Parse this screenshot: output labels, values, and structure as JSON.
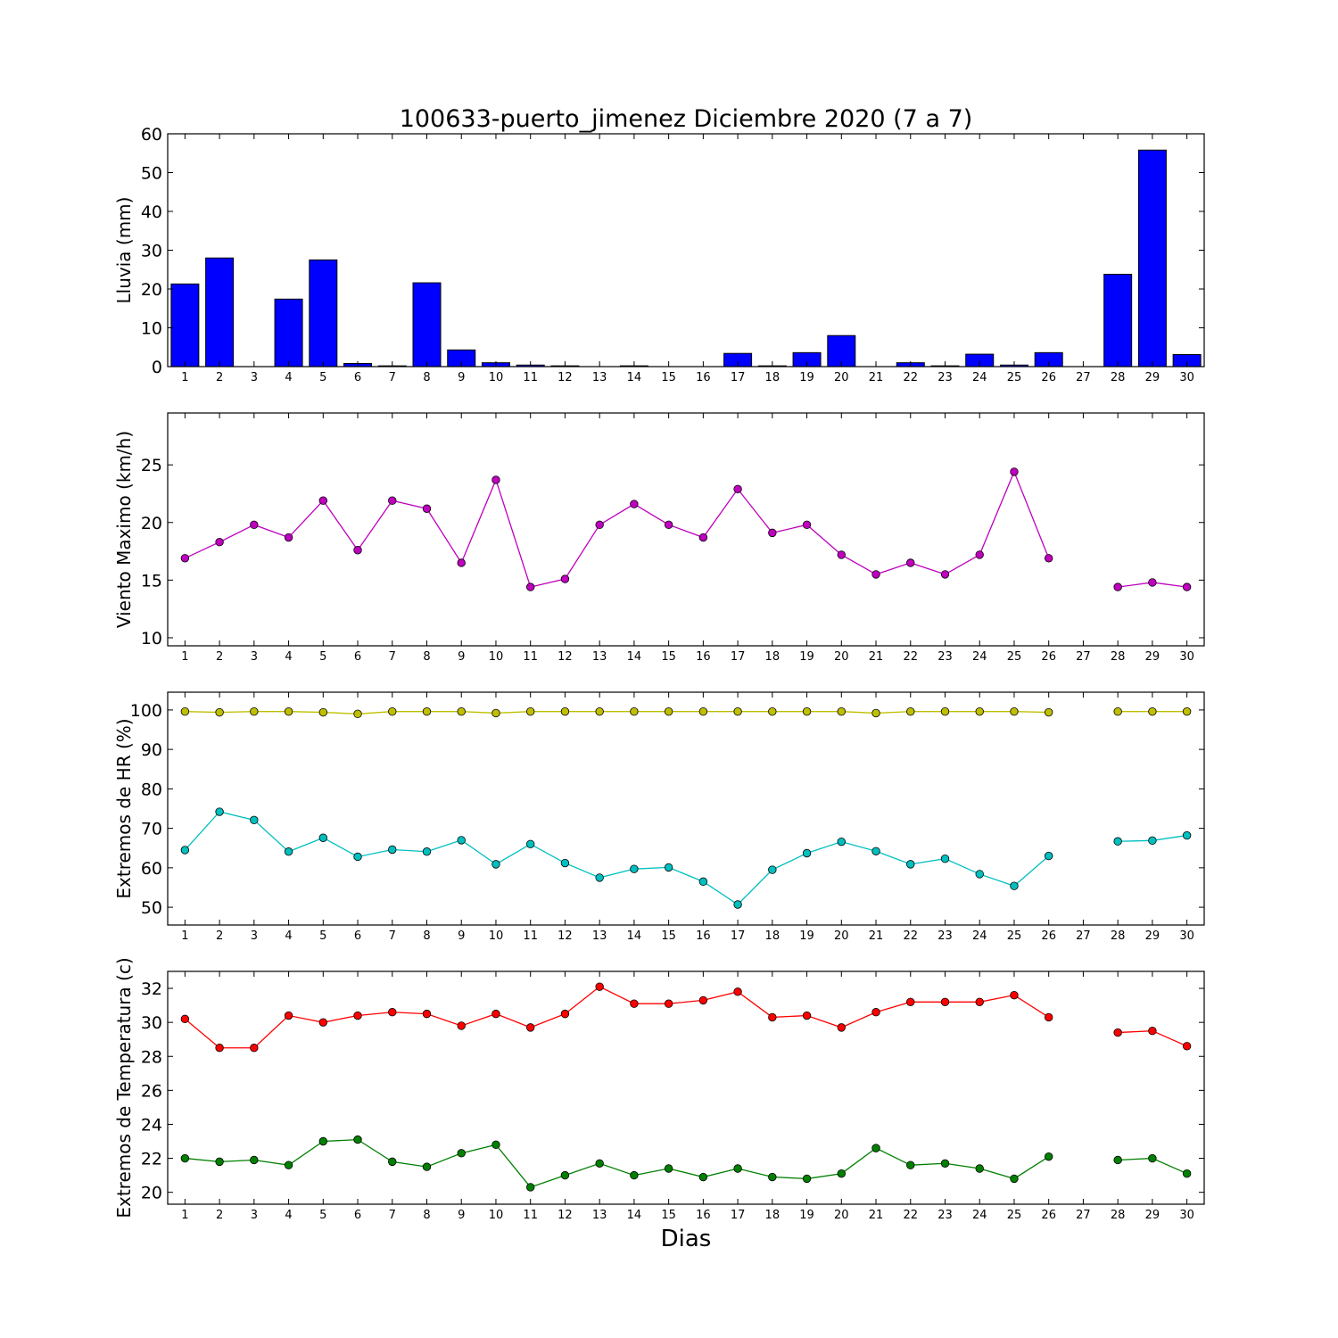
{
  "chart_data": {
    "title": "100633-puerto_jimenez Diciembre 2020  (7 a 7)",
    "xlabel": "Dias",
    "days": [
      1,
      2,
      3,
      4,
      5,
      6,
      7,
      8,
      9,
      10,
      11,
      12,
      13,
      14,
      15,
      16,
      17,
      18,
      19,
      20,
      21,
      22,
      23,
      24,
      25,
      26,
      27,
      28,
      29,
      30
    ],
    "panels": [
      {
        "type": "bar",
        "ylabel": "Lluvia (mm)",
        "ylim": [
          0,
          60
        ],
        "yticks": [
          0,
          10,
          20,
          30,
          40,
          50,
          60
        ],
        "series": [
          {
            "color": "#0000ff",
            "values": [
              21.3,
              28.0,
              0.0,
              17.4,
              27.5,
              0.8,
              0.2,
              21.6,
              4.3,
              1.0,
              0.4,
              0.2,
              0.0,
              0.2,
              0.0,
              0.0,
              3.4,
              0.2,
              3.6,
              8.0,
              0.0,
              1.0,
              0.2,
              3.2,
              0.4,
              3.6,
              null,
              23.8,
              55.8,
              3.1
            ]
          }
        ]
      },
      {
        "type": "line",
        "ylabel": "Viento Maximo (km/h)",
        "ylim": [
          9.3,
          29.5
        ],
        "yticks": [
          10,
          15,
          20,
          25
        ],
        "series": [
          {
            "color": "#bf00bf",
            "values": [
              16.9,
              18.3,
              19.8,
              18.7,
              21.9,
              17.6,
              21.9,
              21.2,
              16.5,
              23.7,
              14.4,
              15.1,
              19.8,
              21.6,
              19.8,
              18.7,
              22.9,
              19.1,
              19.8,
              17.2,
              15.5,
              16.5,
              15.5,
              17.2,
              24.4,
              16.9,
              null,
              14.4,
              14.8,
              14.4
            ]
          }
        ]
      },
      {
        "type": "line",
        "ylabel": "Extremos de HR (%)",
        "ylim": [
          45.5,
          104.5
        ],
        "yticks": [
          50,
          60,
          70,
          80,
          90,
          100
        ],
        "series": [
          {
            "color": "#bfbf00",
            "values": [
              99.6,
              99.4,
              99.6,
              99.6,
              99.4,
              99.0,
              99.6,
              99.6,
              99.6,
              99.2,
              99.6,
              99.6,
              99.6,
              99.6,
              99.6,
              99.6,
              99.6,
              99.6,
              99.6,
              99.6,
              99.2,
              99.6,
              99.6,
              99.6,
              99.6,
              99.4,
              null,
              99.6,
              99.6,
              99.6
            ]
          },
          {
            "color": "#00bfbf",
            "values": [
              64.5,
              74.2,
              72.1,
              64.1,
              67.6,
              62.8,
              64.6,
              64.1,
              67.0,
              60.9,
              66.0,
              61.2,
              57.5,
              59.7,
              60.1,
              56.5,
              50.7,
              59.5,
              63.7,
              66.6,
              64.2,
              60.9,
              62.3,
              58.4,
              55.4,
              63.0,
              null,
              66.7,
              66.9,
              68.2
            ]
          }
        ]
      },
      {
        "type": "line",
        "ylabel": "Extremos de Temperatura (c)",
        "ylim": [
          19.3,
          33.0
        ],
        "yticks": [
          20,
          22,
          24,
          26,
          28,
          30,
          32
        ],
        "series": [
          {
            "color": "#ff0000",
            "values": [
              30.2,
              28.5,
              28.5,
              30.4,
              30.0,
              30.4,
              30.6,
              30.5,
              29.8,
              30.5,
              29.7,
              30.5,
              32.1,
              31.1,
              31.1,
              31.3,
              31.8,
              30.3,
              30.4,
              29.7,
              30.6,
              31.2,
              31.2,
              31.2,
              31.6,
              30.3,
              null,
              29.4,
              29.5,
              28.6
            ]
          },
          {
            "color": "#008000",
            "values": [
              22.0,
              21.8,
              21.9,
              21.6,
              23.0,
              23.1,
              21.8,
              21.5,
              22.3,
              22.8,
              20.3,
              21.0,
              21.7,
              21.0,
              21.4,
              20.9,
              21.4,
              20.9,
              20.8,
              21.1,
              22.6,
              21.6,
              21.7,
              21.4,
              20.8,
              22.1,
              null,
              21.9,
              22.0,
              21.1
            ]
          }
        ]
      }
    ]
  }
}
